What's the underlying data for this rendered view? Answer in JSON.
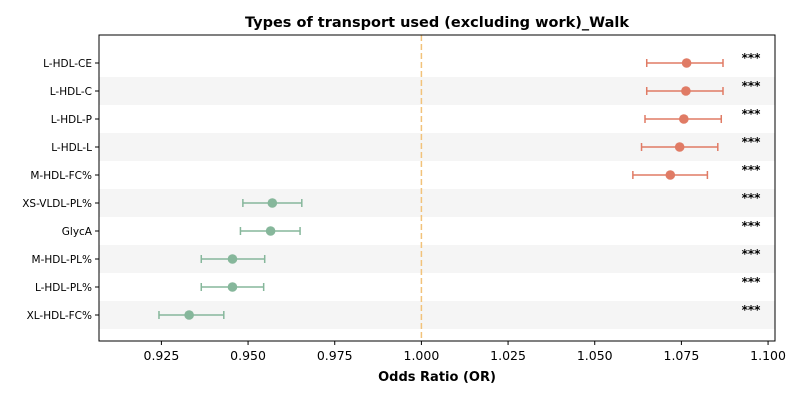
{
  "chart_data": {
    "type": "forest",
    "title": "Types of transport used (excluding work)_Walk",
    "xlabel": "Odds Ratio (OR)",
    "xlim": [
      0.907,
      1.102
    ],
    "xticks": [
      "0.925",
      "0.950",
      "0.975",
      "1.000",
      "1.025",
      "1.050",
      "1.075",
      "1.100"
    ],
    "reference_line": 1.0,
    "significance_label": "***",
    "rows": [
      {
        "label": "L-HDL-CE",
        "or": 1.0765,
        "lo": 1.065,
        "hi": 1.087
      },
      {
        "label": "L-HDL-C",
        "or": 1.0763,
        "lo": 1.065,
        "hi": 1.087
      },
      {
        "label": "L-HDL-P",
        "or": 1.0757,
        "lo": 1.0645,
        "hi": 1.0865
      },
      {
        "label": "L-HDL-L",
        "or": 1.0745,
        "lo": 1.0635,
        "hi": 1.0855
      },
      {
        "label": "M-HDL-FC%",
        "or": 1.0718,
        "lo": 1.061,
        "hi": 1.0825
      },
      {
        "label": "XS-VLDL-PL%",
        "or": 0.957,
        "lo": 0.9485,
        "hi": 0.9655
      },
      {
        "label": "GlycA",
        "or": 0.9565,
        "lo": 0.9478,
        "hi": 0.965
      },
      {
        "label": "M-HDL-PL%",
        "or": 0.9455,
        "lo": 0.9365,
        "hi": 0.9548
      },
      {
        "label": "L-HDL-PL%",
        "or": 0.9455,
        "lo": 0.9365,
        "hi": 0.9545
      },
      {
        "label": "XL-HDL-FC%",
        "or": 0.933,
        "lo": 0.9243,
        "hi": 0.943
      }
    ],
    "colors": {
      "positive": "#E07B65",
      "negative": "#86B79B",
      "reference_line": "#F2C27A",
      "stripe": "#F5F5F5"
    }
  }
}
